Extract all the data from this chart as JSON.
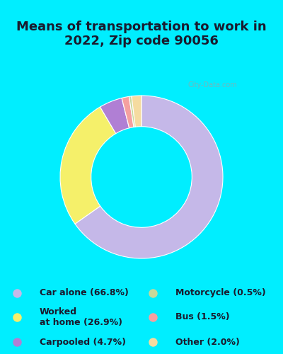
{
  "title": "Means of transportation to work in\n2022, Zip code 90056",
  "title_fontsize": 13,
  "title_color": "#1a1a2e",
  "background_color": "#00eeff",
  "chart_bg_color": "#d8ede0",
  "slices": [
    {
      "label": "Car alone (66.8%)",
      "value": 66.8,
      "color": "#c5b8e8"
    },
    {
      "label": "Worked\nat home (26.9%)",
      "value": 26.9,
      "color": "#f5f06a"
    },
    {
      "label": "Carpooled (4.7%)",
      "value": 4.7,
      "color": "#b07fd4"
    },
    {
      "label": "Bus (1.5%)",
      "value": 1.5,
      "color": "#f5a0a0"
    },
    {
      "label": "Motorcycle (0.5%)",
      "value": 0.5,
      "color": "#c8d89a"
    },
    {
      "label": "Other (2.0%)",
      "value": 2.0,
      "color": "#f5dba0"
    }
  ],
  "legend_items": [
    {
      "label": "Car alone (66.8%)",
      "color": "#c5b8e8"
    },
    {
      "label": "Worked\nat home (26.9%)",
      "color": "#f5f06a"
    },
    {
      "label": "Carpooled (4.7%)",
      "color": "#b07fd4"
    },
    {
      "label": "Motorcycle (0.5%)",
      "color": "#c8d89a"
    },
    {
      "label": "Bus (1.5%)",
      "color": "#f5a0a0"
    },
    {
      "label": "Other (2.0%)",
      "color": "#f5dba0"
    }
  ],
  "donut_width": 0.38,
  "watermark": "City-Data.com"
}
